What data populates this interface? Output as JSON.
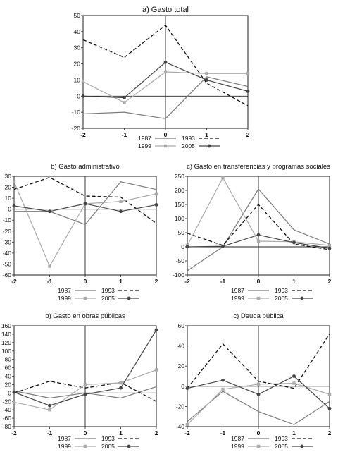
{
  "chart_data": [
    {
      "type": "line",
      "title": "a) Gasto total",
      "x": [
        -2,
        -1,
        0,
        1,
        2
      ],
      "xlim": [
        -2,
        2
      ],
      "ylim": [
        -20,
        50
      ],
      "yticks": [
        -20,
        -10,
        0,
        10,
        20,
        30,
        40,
        50
      ],
      "series": [
        {
          "name": "1987",
          "values": [
            -11,
            -10,
            -14,
            12,
            6
          ],
          "color": "#7a7a7a",
          "dash": "solid",
          "marker": "none"
        },
        {
          "name": "1993",
          "values": [
            35,
            24,
            44,
            8,
            -6
          ],
          "color": "#111111",
          "dash": "dashed",
          "marker": "none"
        },
        {
          "name": "1999",
          "values": [
            9,
            -4,
            15,
            14,
            14
          ],
          "color": "#aaaaaa",
          "dash": "solid",
          "marker": "square"
        },
        {
          "name": "2005",
          "values": [
            0,
            -1,
            21,
            10,
            3
          ],
          "color": "#444444",
          "dash": "solid",
          "marker": "dot"
        }
      ]
    },
    {
      "type": "line",
      "title": "b) Gasto administrativo",
      "x": [
        -2,
        -1,
        0,
        1,
        2
      ],
      "xlim": [
        -2,
        2
      ],
      "ylim": [
        -60,
        30
      ],
      "yticks": [
        -60,
        -50,
        -40,
        -30,
        -20,
        -10,
        0,
        10,
        20,
        30
      ],
      "series": [
        {
          "name": "1987",
          "values": [
            -2,
            -2,
            -14,
            25,
            18
          ],
          "color": "#7a7a7a",
          "dash": "solid",
          "marker": "none"
        },
        {
          "name": "1993",
          "values": [
            18,
            29,
            12,
            11,
            -13
          ],
          "color": "#111111",
          "dash": "dashed",
          "marker": "none"
        },
        {
          "name": "1999",
          "values": [
            25,
            -52,
            5,
            7,
            14
          ],
          "color": "#aaaaaa",
          "dash": "solid",
          "marker": "square"
        },
        {
          "name": "2005",
          "values": [
            3,
            -2,
            5,
            -2,
            4
          ],
          "color": "#444444",
          "dash": "solid",
          "marker": "dot"
        }
      ]
    },
    {
      "type": "line",
      "title": "c) Gasto en transferencias y programas sociales",
      "x": [
        -2,
        -1,
        0,
        1,
        2
      ],
      "xlim": [
        -2,
        2
      ],
      "ylim": [
        -100,
        250
      ],
      "yticks": [
        -100,
        -50,
        0,
        50,
        100,
        150,
        200,
        250
      ],
      "series": [
        {
          "name": "1987",
          "values": [
            -85,
            0,
            205,
            60,
            10
          ],
          "color": "#7a7a7a",
          "dash": "solid",
          "marker": "none"
        },
        {
          "name": "1993",
          "values": [
            48,
            5,
            150,
            10,
            -10
          ],
          "color": "#111111",
          "dash": "dashed",
          "marker": "none"
        },
        {
          "name": "1999",
          "values": [
            5,
            245,
            20,
            18,
            5
          ],
          "color": "#aaaaaa",
          "dash": "solid",
          "marker": "square"
        },
        {
          "name": "2005",
          "values": [
            0,
            2,
            42,
            15,
            -5
          ],
          "color": "#444444",
          "dash": "solid",
          "marker": "dot"
        }
      ]
    },
    {
      "type": "line",
      "title": "b) Gasto en obras públicas",
      "x": [
        -2,
        -1,
        0,
        1,
        2
      ],
      "xlim": [
        -2,
        2
      ],
      "ylim": [
        -80,
        160
      ],
      "yticks": [
        -80,
        -60,
        -40,
        -20,
        0,
        20,
        40,
        60,
        80,
        100,
        120,
        140,
        160
      ],
      "series": [
        {
          "name": "1987",
          "values": [
            5,
            -12,
            0,
            -12,
            15
          ],
          "color": "#7a7a7a",
          "dash": "solid",
          "marker": "none"
        },
        {
          "name": "1993",
          "values": [
            0,
            28,
            12,
            25,
            -20
          ],
          "color": "#111111",
          "dash": "dashed",
          "marker": "none"
        },
        {
          "name": "1999",
          "values": [
            -22,
            -40,
            20,
            24,
            55
          ],
          "color": "#aaaaaa",
          "dash": "solid",
          "marker": "square"
        },
        {
          "name": "2005",
          "values": [
            2,
            -30,
            -3,
            12,
            150
          ],
          "color": "#444444",
          "dash": "solid",
          "marker": "dot"
        }
      ]
    },
    {
      "type": "line",
      "title": "c) Deuda pública",
      "x": [
        -2,
        -1,
        0,
        1,
        2
      ],
      "xlim": [
        -2,
        2
      ],
      "ylim": [
        -40,
        60
      ],
      "yticks": [
        -40,
        -20,
        0,
        20,
        40,
        60
      ],
      "series": [
        {
          "name": "1987",
          "values": [
            -35,
            -5,
            -25,
            -38,
            -15
          ],
          "color": "#7a7a7a",
          "dash": "solid",
          "marker": "none"
        },
        {
          "name": "1993",
          "values": [
            -2,
            42,
            5,
            -2,
            52
          ],
          "color": "#111111",
          "dash": "dashed",
          "marker": "none"
        },
        {
          "name": "1999",
          "values": [
            -38,
            -3,
            2,
            3,
            -8
          ],
          "color": "#aaaaaa",
          "dash": "solid",
          "marker": "square"
        },
        {
          "name": "2005",
          "values": [
            -2,
            6,
            -8,
            10,
            -22
          ],
          "color": "#444444",
          "dash": "solid",
          "marker": "dot"
        }
      ]
    }
  ]
}
